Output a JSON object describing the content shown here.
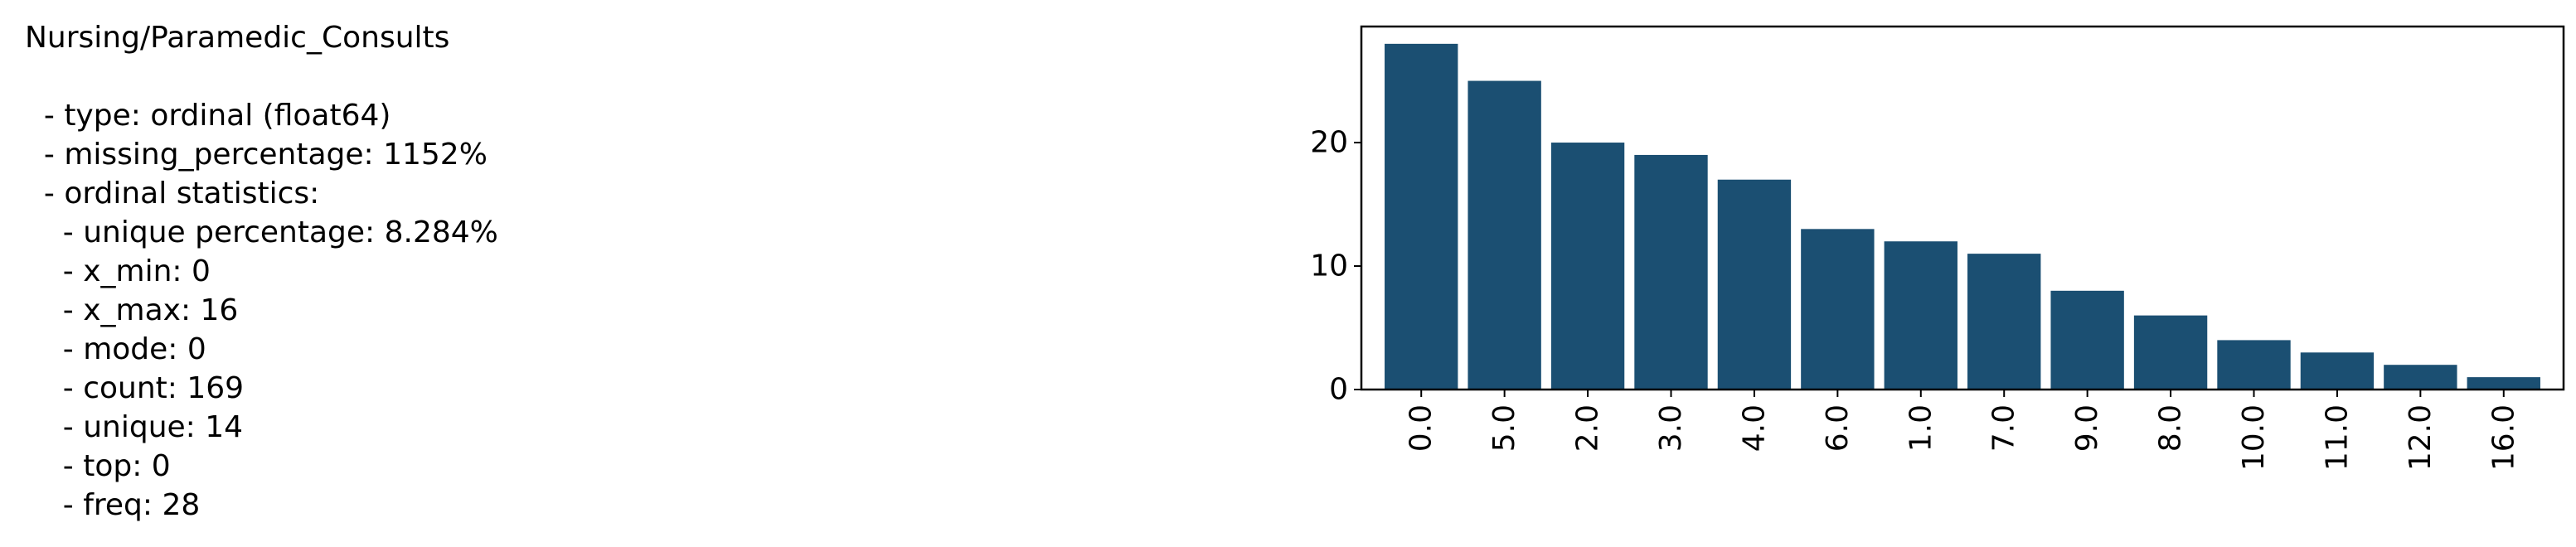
{
  "stats": {
    "title": "Nursing/Paramedic_Consults",
    "lines": [
      "",
      "  - type: ordinal (float64)",
      "  - missing_percentage: 1152%",
      "  - ordinal statistics:",
      "    - unique percentage: 8.284%",
      "    - x_min: 0",
      "    - x_max: 16",
      "    - mode: 0",
      "    - count: 169",
      "    - unique: 14",
      "    - top: 0",
      "    - freq: 28"
    ]
  },
  "chart_data": {
    "type": "bar",
    "categories": [
      "0.0",
      "5.0",
      "2.0",
      "3.0",
      "4.0",
      "6.0",
      "1.0",
      "7.0",
      "9.0",
      "8.0",
      "10.0",
      "11.0",
      "12.0",
      "16.0"
    ],
    "values": [
      28,
      25,
      20,
      19,
      17,
      13,
      12,
      11,
      8,
      6,
      4,
      3,
      2,
      1
    ],
    "yticks": [
      "0",
      "10",
      "20"
    ],
    "ylim": [
      0,
      29.4
    ],
    "xlabel": "",
    "ylabel": "",
    "title": "",
    "grid": false,
    "bar_color": "#1b4f72"
  }
}
